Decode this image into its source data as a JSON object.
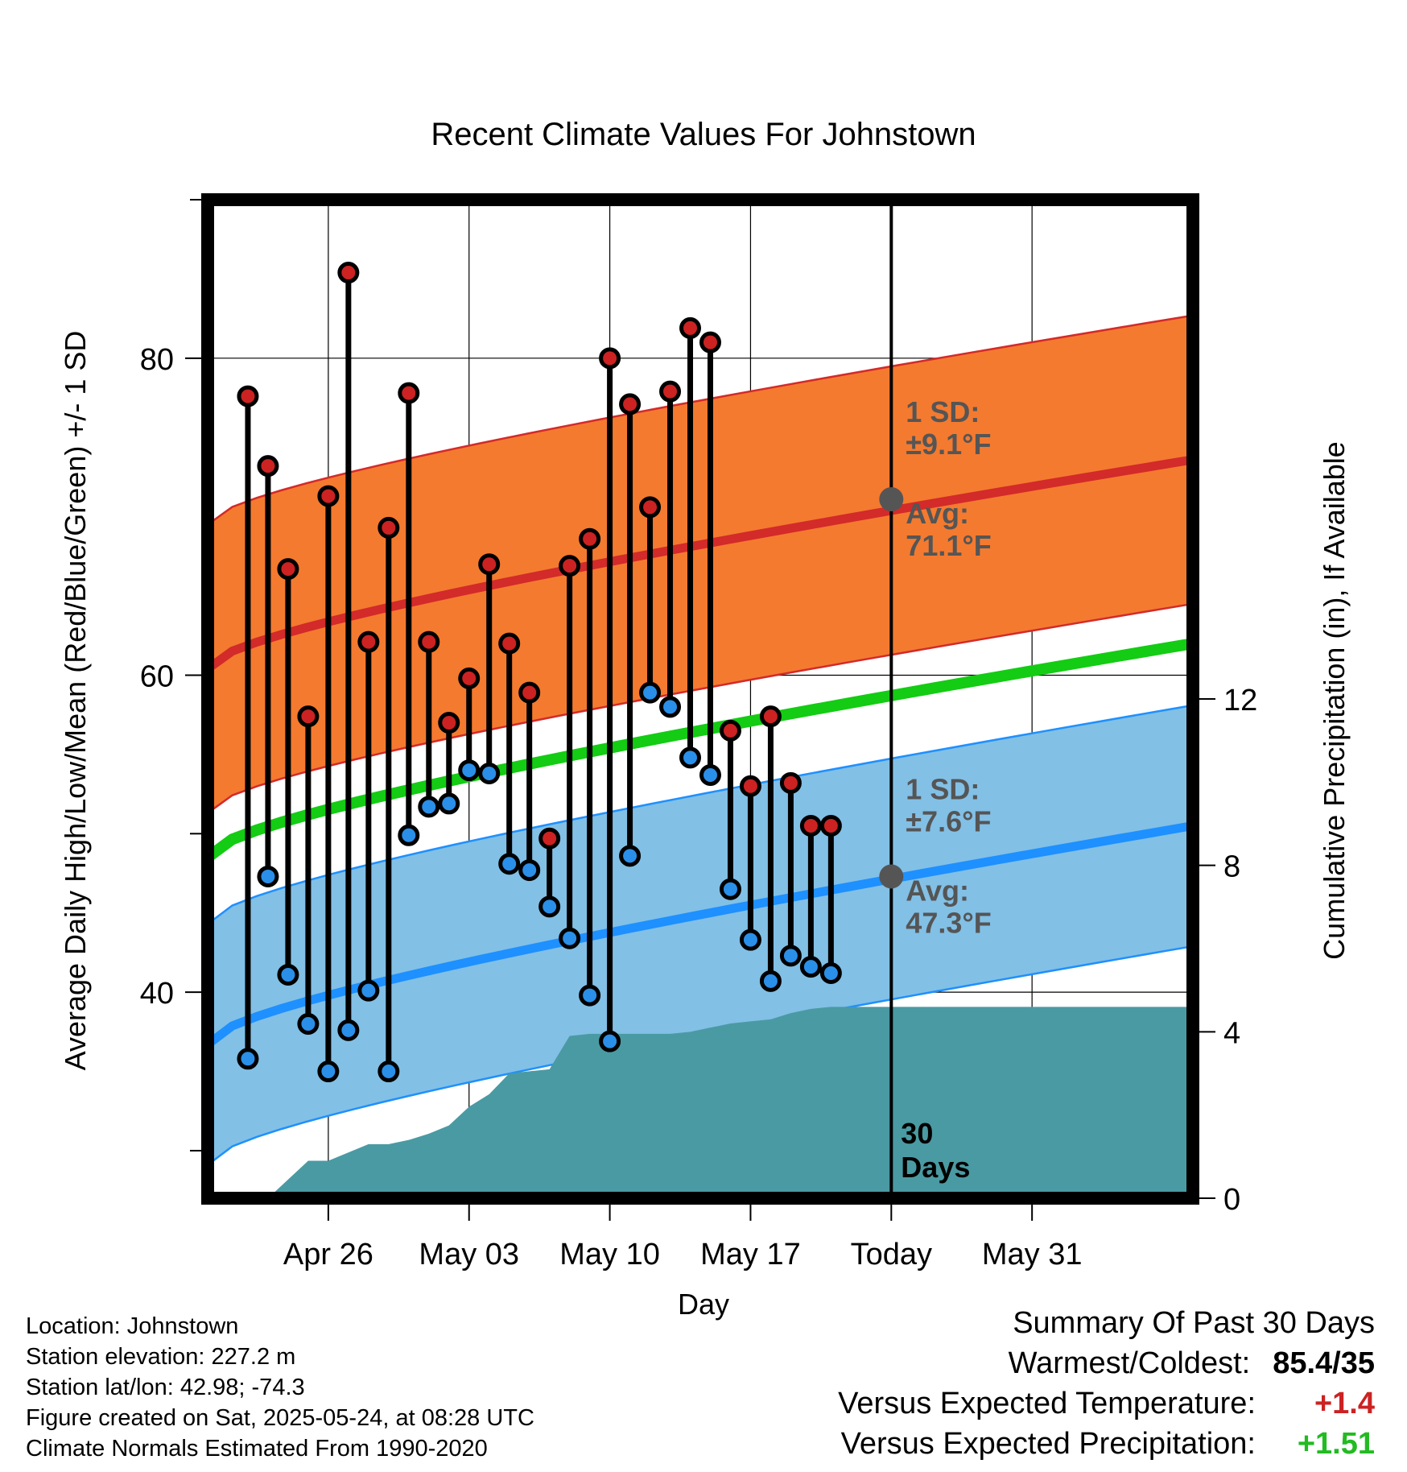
{
  "chart_data": {
    "type": "line",
    "title": "Recent Climate Values For Johnstown",
    "xlabel": "Day",
    "ylabel_left": "Average Daily High/Low/Mean (Red/Blue/Green) +/- 1 SD",
    "ylabel_right": "Cumulative Precipitation (in), If Available",
    "x_ticks": [
      "Apr 26",
      "May 03",
      "May 10",
      "May 17",
      "Today",
      "May 31"
    ],
    "y_left_ticks": [
      "40",
      "60",
      "80"
    ],
    "y_right_ticks": [
      "0",
      "4",
      "8",
      "12"
    ],
    "y_left_range": [
      27,
      90
    ],
    "y_right_range": [
      0,
      24
    ],
    "x_range_days": [
      -34,
      15
    ],
    "daily_high": [
      77.6,
      73.2,
      66.7,
      57.4,
      71.3,
      85.4,
      62.1,
      69.3,
      77.8,
      62.1,
      57.0,
      59.8,
      67.0,
      62.0,
      58.9,
      49.7,
      66.9,
      68.6,
      80.0,
      77.1,
      70.6,
      77.9,
      81.9,
      81.0,
      56.5,
      53.0,
      57.4,
      53.2,
      50.5,
      50.5
    ],
    "daily_low": [
      35.8,
      47.3,
      41.1,
      38.0,
      35.0,
      37.6,
      40.1,
      35.0,
      49.9,
      51.7,
      51.9,
      54.0,
      53.8,
      48.1,
      47.7,
      45.4,
      43.4,
      39.8,
      36.9,
      48.6,
      58.9,
      58.0,
      54.8,
      53.7,
      46.5,
      43.3,
      40.7,
      42.3,
      41.6,
      41.2
    ],
    "day_offsets": [
      -32,
      -31,
      -30,
      -29,
      -28,
      -27,
      -26,
      -25,
      -24,
      -23,
      -22,
      -21,
      -20,
      -19,
      -18,
      -17,
      -16,
      -15,
      -14,
      -13,
      -12,
      -11,
      -10,
      -9,
      -8,
      -7,
      -6,
      -5,
      -4,
      -3
    ],
    "normal_high": {
      "start": 60.4,
      "today": 71.1,
      "end": 73.6,
      "sd": 9.1
    },
    "normal_low": {
      "start": 36.7,
      "today": 47.3,
      "end": 50.5,
      "sd": 7.6
    },
    "normal_mean": {
      "start": 48.5,
      "end": 62.0
    },
    "precip_cumulative": {
      "day_offsets": [
        -34,
        -31,
        -29,
        -28,
        -26,
        -25,
        -24,
        -23,
        -22,
        -21,
        -20,
        -19,
        -18,
        -17,
        -16,
        -15,
        -14,
        -13,
        -12,
        -11,
        -10,
        -9,
        -8,
        -7,
        -6,
        -5,
        -4,
        -3,
        0,
        9
      ],
      "values": [
        0,
        0,
        0.9,
        0.9,
        1.3,
        1.3,
        1.4,
        1.55,
        1.75,
        2.2,
        2.5,
        3.0,
        3.05,
        3.1,
        3.9,
        3.95,
        3.95,
        3.95,
        3.95,
        3.95,
        4.0,
        4.1,
        4.2,
        4.25,
        4.3,
        4.45,
        4.55,
        4.6,
        4.6,
        4.6
      ]
    },
    "annotations": {
      "high_sd": "1 SD:",
      "high_sd_value": "±9.1°F",
      "high_avg": "Avg:",
      "high_avg_value": "71.1°F",
      "low_sd": "1 SD:",
      "low_sd_value": "±7.6°F",
      "low_avg": "Avg:",
      "low_avg_value": "47.3°F",
      "days_num": "30",
      "days_word": "Days"
    },
    "colors": {
      "high_band": "#f47a2f",
      "high_line": "#d32a2a",
      "low_band": "#82c0e6",
      "low_line": "#1e90ff",
      "mean_line": "#13cc13",
      "precip": "#4a9aa3",
      "high_marker": "#cc2222",
      "low_marker": "#2a8fe8"
    }
  },
  "footer": {
    "location": "Location: Johnstown",
    "elevation": "Station elevation: 227.2 m",
    "latlon": "Station lat/lon: 42.98; -74.3",
    "created": "Figure created on Sat, 2025-05-24, at 08:28 UTC",
    "normals": "Climate Normals Estimated From 1990-2020"
  },
  "summary": {
    "heading": "Summary Of Past 30 Days",
    "warmest_label": "Warmest/Coldest:",
    "warmest_value": "85.4/35",
    "temp_label": "Versus Expected Temperature:",
    "temp_value": "+1.4",
    "temp_color": "#cc2222",
    "precip_label": "Versus Expected Precipitation:",
    "precip_value": "+1.51",
    "precip_color": "#22bb22"
  }
}
